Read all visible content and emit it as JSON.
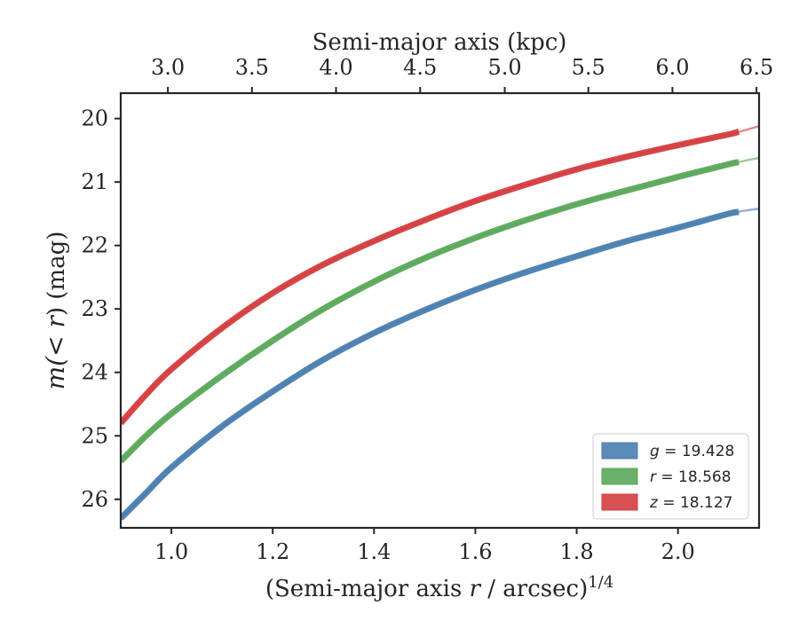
{
  "chart_data": {
    "type": "line",
    "xlabel_prefix": "(Semi-major axis ",
    "xlabel_var": "r",
    "xlabel_suffix": " / arcsec)",
    "xlabel_exp": "1/4",
    "top_xlabel": "Semi-major axis (kpc)",
    "ylabel_var": "m",
    "ylabel_mid": "(< ",
    "ylabel_var2": "r",
    "ylabel_suffix": ") (mag)",
    "xlim": [
      0.9,
      2.16
    ],
    "ylim": [
      26.45,
      19.6
    ],
    "y_inverted": true,
    "x_ticks": [
      "1.0",
      "1.2",
      "1.4",
      "1.6",
      "1.8",
      "2.0"
    ],
    "y_ticks": [
      "20",
      "21",
      "22",
      "23",
      "24",
      "25",
      "26"
    ],
    "top_ticks": [
      "3.0",
      "3.5",
      "4.0",
      "4.5",
      "5.0",
      "5.5",
      "6.0",
      "6.5"
    ],
    "top_tick_x": [
      0.993,
      1.159,
      1.325,
      1.491,
      1.658,
      1.823,
      1.989,
      2.155
    ],
    "legend_placement": "lower-right",
    "series": [
      {
        "name": "g = 19.428",
        "legend_var": "g",
        "legend_value": " = 19.428",
        "color": "#4a7eb0",
        "x": [
          0.9,
          0.95,
          1.0,
          1.1,
          1.2,
          1.3,
          1.4,
          1.5,
          1.6,
          1.7,
          1.8,
          1.9,
          2.0,
          2.1,
          2.16
        ],
        "y": [
          26.3,
          25.9,
          25.5,
          24.85,
          24.3,
          23.8,
          23.38,
          23.02,
          22.7,
          22.42,
          22.17,
          21.93,
          21.72,
          21.5,
          21.42
        ]
      },
      {
        "name": "r = 18.568",
        "legend_var": "r",
        "legend_value": " = 18.568",
        "color": "#5aa85a",
        "x": [
          0.9,
          0.95,
          1.0,
          1.1,
          1.2,
          1.3,
          1.4,
          1.5,
          1.6,
          1.7,
          1.8,
          1.9,
          2.0,
          2.1,
          2.16
        ],
        "y": [
          25.4,
          25.0,
          24.65,
          24.05,
          23.5,
          23.0,
          22.57,
          22.2,
          21.88,
          21.6,
          21.35,
          21.13,
          20.92,
          20.72,
          20.62
        ]
      },
      {
        "name": "z = 18.127",
        "legend_var": "z",
        "legend_value": " = 18.127",
        "color": "#d43d3f",
        "x": [
          0.9,
          0.95,
          1.0,
          1.1,
          1.2,
          1.3,
          1.4,
          1.5,
          1.6,
          1.7,
          1.8,
          1.9,
          2.0,
          2.1,
          2.16
        ],
        "y": [
          24.8,
          24.35,
          23.95,
          23.3,
          22.75,
          22.3,
          21.93,
          21.6,
          21.3,
          21.04,
          20.8,
          20.6,
          20.42,
          20.25,
          20.12
        ]
      }
    ]
  }
}
